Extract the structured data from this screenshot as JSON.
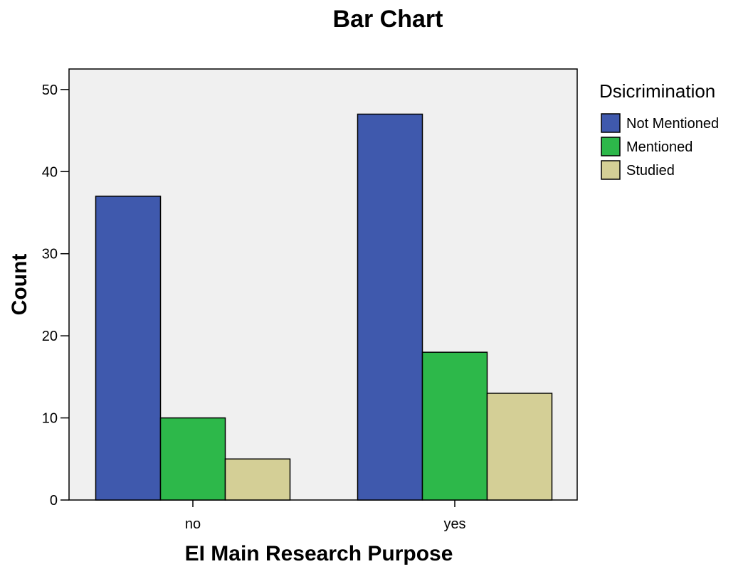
{
  "chart_data": {
    "type": "bar",
    "title": "Bar Chart",
    "xlabel": "EI Main Research Purpose",
    "ylabel": "Count",
    "categories": [
      "no",
      "yes"
    ],
    "series": [
      {
        "name": "Not Mentioned",
        "values": [
          37,
          47
        ],
        "color": "#3f59ad"
      },
      {
        "name": "Mentioned",
        "values": [
          10,
          18
        ],
        "color": "#2db84a"
      },
      {
        "name": "Studied",
        "values": [
          5,
          13
        ],
        "color": "#d4cf96"
      }
    ],
    "ylim": [
      0,
      52.5
    ],
    "yticks": [
      0,
      10,
      20,
      30,
      40,
      50
    ],
    "grid": false,
    "plot_background": "#f0f0f0",
    "legend": {
      "title": "Dsicrimination",
      "placement": "right"
    }
  }
}
